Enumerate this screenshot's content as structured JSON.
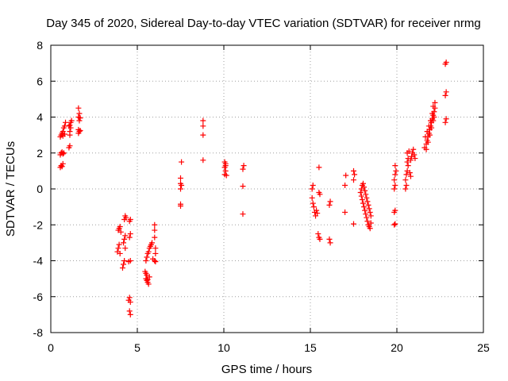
{
  "chart_data": {
    "type": "scatter",
    "title": "Day 345 of 2020, Sidereal Day-to-day VTEC variation (SDTVAR) for receiver nrmg",
    "xlabel": "GPS time / hours",
    "ylabel": "SDTVAR / TECUs",
    "xlim": [
      0,
      25
    ],
    "ylim": [
      -8,
      8
    ],
    "xticks": [
      0,
      5,
      10,
      15,
      20,
      25
    ],
    "yticks": [
      -8,
      -6,
      -4,
      -2,
      0,
      2,
      4,
      6,
      8
    ],
    "grid": true,
    "marker": "+",
    "series": [
      {
        "name": "SDTVAR",
        "color": "#ff0000",
        "points": [
          [
            0.55,
            1.2
          ],
          [
            0.6,
            1.3
          ],
          [
            0.65,
            1.25
          ],
          [
            0.7,
            1.4
          ],
          [
            0.55,
            1.9
          ],
          [
            0.6,
            2.0
          ],
          [
            0.65,
            2.05
          ],
          [
            0.7,
            1.95
          ],
          [
            0.75,
            2.0
          ],
          [
            0.55,
            2.9
          ],
          [
            0.6,
            3.0
          ],
          [
            0.65,
            3.1
          ],
          [
            0.7,
            3.2
          ],
          [
            0.75,
            3.4
          ],
          [
            0.8,
            3.5
          ],
          [
            0.85,
            3.7
          ],
          [
            0.7,
            2.95
          ],
          [
            0.8,
            3.05
          ],
          [
            1.05,
            2.3
          ],
          [
            1.1,
            2.4
          ],
          [
            1.1,
            3.0
          ],
          [
            1.1,
            3.2
          ],
          [
            1.15,
            3.4
          ],
          [
            1.1,
            3.55
          ],
          [
            1.15,
            3.7
          ],
          [
            1.2,
            3.8
          ],
          [
            1.05,
            3.5
          ],
          [
            1.6,
            3.1
          ],
          [
            1.65,
            3.2
          ],
          [
            1.6,
            3.3
          ],
          [
            1.65,
            3.8
          ],
          [
            1.6,
            4.0
          ],
          [
            1.65,
            4.2
          ],
          [
            1.6,
            4.5
          ],
          [
            1.7,
            3.95
          ],
          [
            1.7,
            3.25
          ],
          [
            3.85,
            -3.5
          ],
          [
            3.9,
            -3.3
          ],
          [
            3.95,
            -3.1
          ],
          [
            3.9,
            -2.3
          ],
          [
            3.95,
            -2.2
          ],
          [
            4.0,
            -2.1
          ],
          [
            4.0,
            -3.6
          ],
          [
            4.05,
            -2.4
          ],
          [
            4.15,
            -4.4
          ],
          [
            4.2,
            -4.2
          ],
          [
            4.25,
            -4.0
          ],
          [
            4.2,
            -3.0
          ],
          [
            4.25,
            -2.8
          ],
          [
            4.3,
            -2.6
          ],
          [
            4.25,
            -1.7
          ],
          [
            4.3,
            -1.5
          ],
          [
            4.35,
            -1.6
          ],
          [
            4.3,
            -3.3
          ],
          [
            4.5,
            -6.2
          ],
          [
            4.55,
            -6.05
          ],
          [
            4.6,
            -6.3
          ],
          [
            4.55,
            -6.8
          ],
          [
            4.6,
            -7.0
          ],
          [
            4.5,
            -4.05
          ],
          [
            4.6,
            -4.0
          ],
          [
            4.55,
            -2.7
          ],
          [
            4.6,
            -2.5
          ],
          [
            4.55,
            -1.8
          ],
          [
            4.6,
            -1.7
          ],
          [
            5.45,
            -4.6
          ],
          [
            5.5,
            -4.7
          ],
          [
            5.55,
            -4.8
          ],
          [
            5.5,
            -5.0
          ],
          [
            5.55,
            -5.1
          ],
          [
            5.6,
            -5.2
          ],
          [
            5.65,
            -5.3
          ],
          [
            5.6,
            -5.05
          ],
          [
            5.7,
            -4.9
          ],
          [
            5.5,
            -4.0
          ],
          [
            5.55,
            -3.8
          ],
          [
            5.6,
            -3.6
          ],
          [
            5.65,
            -3.5
          ],
          [
            5.7,
            -3.3
          ],
          [
            5.75,
            -3.2
          ],
          [
            5.8,
            -3.1
          ],
          [
            5.85,
            -3.0
          ],
          [
            5.9,
            -3.9
          ],
          [
            6.0,
            -2.0
          ],
          [
            6.0,
            -2.3
          ],
          [
            6.0,
            -2.7
          ],
          [
            6.05,
            -3.3
          ],
          [
            6.05,
            -3.6
          ],
          [
            6.0,
            -4.0
          ],
          [
            6.05,
            -4.05
          ],
          [
            7.5,
            -0.95
          ],
          [
            7.5,
            -0.85
          ],
          [
            7.5,
            0.0
          ],
          [
            7.55,
            0.2
          ],
          [
            7.5,
            0.3
          ],
          [
            7.5,
            0.6
          ],
          [
            7.55,
            1.5
          ],
          [
            8.8,
            1.6
          ],
          [
            8.8,
            3.0
          ],
          [
            8.8,
            3.5
          ],
          [
            8.8,
            3.8
          ],
          [
            10.05,
            0.8
          ],
          [
            10.1,
            1.0
          ],
          [
            10.05,
            1.2
          ],
          [
            10.1,
            1.3
          ],
          [
            10.05,
            1.5
          ],
          [
            10.1,
            1.4
          ],
          [
            10.15,
            0.75
          ],
          [
            11.1,
            -1.4
          ],
          [
            11.1,
            0.15
          ],
          [
            11.1,
            1.1
          ],
          [
            11.15,
            1.3
          ],
          [
            15.1,
            -0.5
          ],
          [
            15.15,
            -0.8
          ],
          [
            15.1,
            0.0
          ],
          [
            15.15,
            0.2
          ],
          [
            15.2,
            -1.0
          ],
          [
            15.25,
            -1.3
          ],
          [
            15.3,
            -1.5
          ],
          [
            15.35,
            -1.2
          ],
          [
            15.4,
            -1.35
          ],
          [
            15.5,
            -0.2
          ],
          [
            15.55,
            -0.3
          ],
          [
            15.45,
            -2.5
          ],
          [
            15.5,
            -2.7
          ],
          [
            15.55,
            -2.8
          ],
          [
            15.5,
            1.2
          ],
          [
            16.1,
            -0.9
          ],
          [
            16.15,
            -0.7
          ],
          [
            16.1,
            -2.8
          ],
          [
            16.15,
            -3.0
          ],
          [
            17.0,
            0.2
          ],
          [
            17.05,
            0.75
          ],
          [
            17.0,
            -1.3
          ],
          [
            17.5,
            -1.95
          ],
          [
            17.5,
            0.5
          ],
          [
            17.55,
            0.8
          ],
          [
            17.5,
            1.0
          ],
          [
            17.9,
            -0.2
          ],
          [
            17.95,
            -0.4
          ],
          [
            18.0,
            -0.6
          ],
          [
            18.05,
            -0.8
          ],
          [
            18.1,
            -1.0
          ],
          [
            18.15,
            -1.2
          ],
          [
            18.2,
            -1.4
          ],
          [
            18.25,
            -1.6
          ],
          [
            18.3,
            -1.8
          ],
          [
            18.35,
            -2.0
          ],
          [
            18.4,
            -2.1
          ],
          [
            18.45,
            -2.2
          ],
          [
            17.95,
            0.0
          ],
          [
            18.0,
            0.2
          ],
          [
            18.05,
            0.3
          ],
          [
            18.1,
            0.1
          ],
          [
            18.15,
            -0.1
          ],
          [
            18.2,
            -0.3
          ],
          [
            18.25,
            -0.5
          ],
          [
            18.3,
            -0.7
          ],
          [
            18.35,
            -0.9
          ],
          [
            18.4,
            -1.1
          ],
          [
            18.45,
            -1.3
          ],
          [
            18.5,
            -1.5
          ],
          [
            18.5,
            -1.9
          ],
          [
            19.85,
            -2.0
          ],
          [
            19.9,
            -1.95
          ],
          [
            19.85,
            -1.3
          ],
          [
            19.9,
            -1.2
          ],
          [
            19.85,
            0.0
          ],
          [
            19.9,
            0.2
          ],
          [
            19.85,
            0.5
          ],
          [
            19.9,
            0.8
          ],
          [
            19.95,
            1.0
          ],
          [
            19.9,
            1.3
          ],
          [
            20.5,
            0.0
          ],
          [
            20.55,
            0.2
          ],
          [
            20.5,
            0.5
          ],
          [
            20.55,
            0.8
          ],
          [
            20.6,
            1.0
          ],
          [
            20.65,
            1.3
          ],
          [
            20.6,
            1.5
          ],
          [
            20.65,
            1.7
          ],
          [
            20.6,
            2.0
          ],
          [
            20.7,
            2.1
          ],
          [
            20.8,
            1.6
          ],
          [
            20.85,
            1.8
          ],
          [
            20.9,
            2.0
          ],
          [
            20.95,
            2.2
          ],
          [
            21.0,
            1.9
          ],
          [
            21.05,
            1.7
          ],
          [
            20.75,
            0.9
          ],
          [
            20.8,
            0.7
          ],
          [
            21.6,
            2.3
          ],
          [
            21.7,
            2.5
          ],
          [
            21.75,
            2.7
          ],
          [
            21.8,
            2.9
          ],
          [
            21.85,
            3.1
          ],
          [
            21.9,
            3.3
          ],
          [
            21.95,
            3.5
          ],
          [
            22.0,
            3.7
          ],
          [
            22.05,
            3.9
          ],
          [
            22.1,
            4.1
          ],
          [
            22.15,
            4.3
          ],
          [
            22.2,
            4.5
          ],
          [
            22.2,
            4.8
          ],
          [
            21.7,
            2.2
          ],
          [
            21.8,
            2.6
          ],
          [
            21.9,
            3.0
          ],
          [
            22.0,
            3.4
          ],
          [
            22.1,
            3.8
          ],
          [
            22.15,
            4.0
          ],
          [
            21.65,
            2.9
          ],
          [
            21.75,
            3.2
          ],
          [
            21.85,
            3.5
          ],
          [
            21.95,
            3.8
          ],
          [
            22.05,
            4.2
          ],
          [
            22.1,
            4.6
          ],
          [
            22.8,
            3.7
          ],
          [
            22.85,
            3.9
          ],
          [
            22.8,
            5.2
          ],
          [
            22.85,
            5.4
          ],
          [
            22.8,
            6.95
          ],
          [
            22.85,
            7.05
          ]
        ]
      }
    ]
  }
}
